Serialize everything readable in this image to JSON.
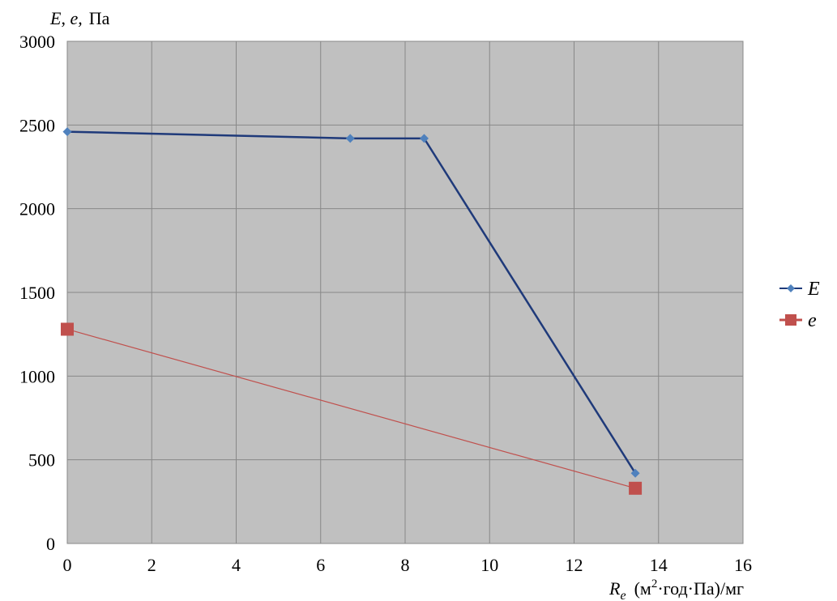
{
  "chart_data": {
    "type": "line",
    "ylabel_parts": {
      "var1": "E",
      "sep1": ", ",
      "var2": "e,",
      "unit": "Па"
    },
    "xlabel_parts": {
      "var": "R",
      "sub": "e",
      "unit_pre": "(м",
      "sup": "2",
      "unit_post": "·год·Па)/мг"
    },
    "xlim": [
      0,
      16
    ],
    "ylim": [
      0,
      3000
    ],
    "x_ticks": [
      0,
      2,
      4,
      6,
      8,
      10,
      12,
      14,
      16
    ],
    "y_ticks": [
      0,
      500,
      1000,
      1500,
      2000,
      2500,
      3000
    ],
    "grid": true,
    "legend_position": "right",
    "series": [
      {
        "name": "E",
        "color": "#1f3a7a",
        "marker_color": "#4f81bd",
        "marker": "diamond",
        "x": [
          0,
          6.7,
          8.45,
          13.45
        ],
        "y": [
          2460,
          2420,
          2420,
          420
        ]
      },
      {
        "name": "e",
        "color": "#c0504d",
        "marker_color": "#c0504d",
        "marker": "square",
        "x": [
          0,
          13.45
        ],
        "y": [
          1280,
          330
        ]
      }
    ],
    "plot_background": "#c0c0c0",
    "grid_color": "#888888"
  }
}
